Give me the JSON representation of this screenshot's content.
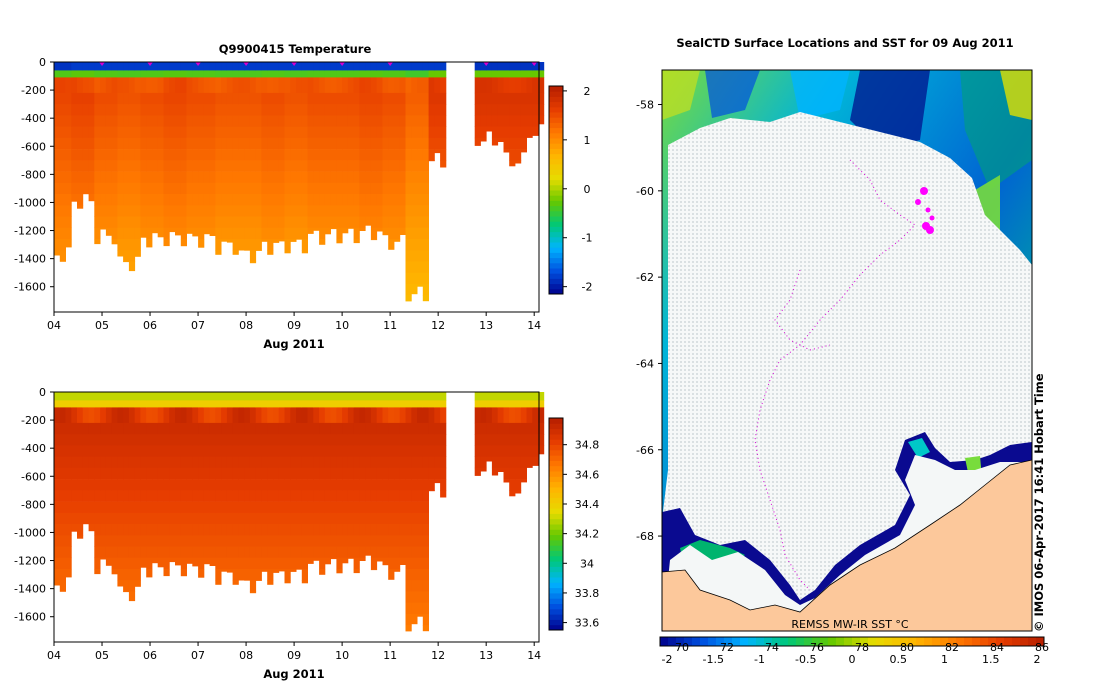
{
  "chart_data": [
    {
      "type": "heatmap",
      "title": "Q9900415  Temperature",
      "xlabel": "Aug 2011",
      "ylabel": "",
      "x_ticks": [
        "04",
        "05",
        "06",
        "07",
        "08",
        "09",
        "10",
        "11",
        "12",
        "13",
        "14"
      ],
      "xlim": [
        4,
        14.1
      ],
      "y_ticks": [
        0,
        -200,
        -400,
        -600,
        -800,
        -1000,
        -1200,
        -1400,
        -1600
      ],
      "ylim": [
        -1780,
        0
      ],
      "gaps": [
        [
          12.15,
          12.75
        ]
      ],
      "profile_markers": [
        5,
        6,
        7,
        8,
        9,
        10,
        11,
        13,
        14
      ],
      "colorbar": {
        "min": -2.15,
        "max": 2.1,
        "ticks": [
          "-2",
          "-1",
          "0",
          "1",
          "2"
        ],
        "tick_values": [
          -2,
          -1,
          0,
          1,
          2
        ]
      },
      "color_stops": [
        "#00008b",
        "#0050e0",
        "#00b4ff",
        "#00c878",
        "#64c800",
        "#e6dc00",
        "#ffb400",
        "#ff7800",
        "#e63c00",
        "#b41e00"
      ],
      "profiles": [
        {
          "t": 4.08,
          "maxdepth": 1370,
          "surface": -1.85,
          "deep": 1.55
        },
        {
          "t": 4.5,
          "maxdepth": 990,
          "surface": -1.8,
          "deep": 1.6
        },
        {
          "t": 5.0,
          "maxdepth": 1240,
          "surface": -1.8,
          "deep": 1.5
        },
        {
          "t": 5.5,
          "maxdepth": 1430,
          "surface": -1.8,
          "deep": 1.45
        },
        {
          "t": 6.0,
          "maxdepth": 1260,
          "surface": -1.8,
          "deep": 1.5
        },
        {
          "t": 6.5,
          "maxdepth": 1250,
          "surface": -1.8,
          "deep": 1.55
        },
        {
          "t": 7.0,
          "maxdepth": 1260,
          "surface": -1.8,
          "deep": 1.5
        },
        {
          "t": 7.5,
          "maxdepth": 1310,
          "surface": -1.8,
          "deep": 1.45
        },
        {
          "t": 8.0,
          "maxdepth": 1370,
          "surface": -1.8,
          "deep": 1.45
        },
        {
          "t": 8.5,
          "maxdepth": 1310,
          "surface": -1.8,
          "deep": 1.5
        },
        {
          "t": 9.0,
          "maxdepth": 1300,
          "surface": -1.8,
          "deep": 1.45
        },
        {
          "t": 9.5,
          "maxdepth": 1240,
          "surface": -1.8,
          "deep": 1.5
        },
        {
          "t": 10.0,
          "maxdepth": 1230,
          "surface": -1.8,
          "deep": 1.5
        },
        {
          "t": 10.5,
          "maxdepth": 1210,
          "surface": -1.8,
          "deep": 1.55
        },
        {
          "t": 11.0,
          "maxdepth": 1280,
          "surface": -1.8,
          "deep": 1.5
        },
        {
          "t": 11.5,
          "maxdepth": 1650,
          "surface": -1.8,
          "deep": 1.35
        },
        {
          "t": 12.0,
          "maxdepth": 700,
          "surface": -1.8,
          "deep": 1.7
        },
        {
          "t": 13.0,
          "maxdepth": 550,
          "surface": -1.85,
          "deep": 1.75
        },
        {
          "t": 13.5,
          "maxdepth": 700,
          "surface": -1.85,
          "deep": 1.75
        },
        {
          "t": 14.0,
          "maxdepth": 500,
          "surface": -1.85,
          "deep": 1.75
        }
      ]
    },
    {
      "type": "heatmap",
      "title": "",
      "xlabel": "Aug 2011",
      "ylabel": "",
      "x_ticks": [
        "04",
        "05",
        "06",
        "07",
        "08",
        "09",
        "10",
        "11",
        "12",
        "13",
        "14"
      ],
      "xlim": [
        4,
        14.1
      ],
      "y_ticks": [
        0,
        -200,
        -400,
        -600,
        -800,
        -1000,
        -1200,
        -1400,
        -1600
      ],
      "ylim": [
        -1780,
        0
      ],
      "gaps": [
        [
          12.15,
          12.75
        ]
      ],
      "colorbar": {
        "min": 33.55,
        "max": 34.98,
        "ticks": [
          "33.6",
          "33.8",
          "34",
          "34.2",
          "34.4",
          "34.6",
          "34.8"
        ],
        "tick_values": [
          33.6,
          33.8,
          34.0,
          34.2,
          34.4,
          34.6,
          34.8
        ]
      },
      "color_stops": [
        "#00008b",
        "#0050e0",
        "#00b4ff",
        "#00c878",
        "#64c800",
        "#e6dc00",
        "#ffb400",
        "#ff7800",
        "#e63c00",
        "#b41e00"
      ],
      "profiles": [
        {
          "t": 4.08,
          "maxdepth": 1370,
          "surface": 34.3,
          "deep": 34.9
        },
        {
          "t": 4.5,
          "maxdepth": 990,
          "surface": 34.3,
          "deep": 34.9
        },
        {
          "t": 5.0,
          "maxdepth": 1240,
          "surface": 34.3,
          "deep": 34.9
        },
        {
          "t": 5.5,
          "maxdepth": 1430,
          "surface": 34.3,
          "deep": 34.9
        },
        {
          "t": 6.0,
          "maxdepth": 1260,
          "surface": 34.3,
          "deep": 34.9
        },
        {
          "t": 6.5,
          "maxdepth": 1250,
          "surface": 34.3,
          "deep": 34.9
        },
        {
          "t": 7.0,
          "maxdepth": 1260,
          "surface": 34.3,
          "deep": 34.9
        },
        {
          "t": 7.5,
          "maxdepth": 1310,
          "surface": 34.3,
          "deep": 34.9
        },
        {
          "t": 8.0,
          "maxdepth": 1370,
          "surface": 34.3,
          "deep": 34.9
        },
        {
          "t": 8.5,
          "maxdepth": 1310,
          "surface": 34.3,
          "deep": 34.9
        },
        {
          "t": 9.0,
          "maxdepth": 1300,
          "surface": 34.3,
          "deep": 34.9
        },
        {
          "t": 9.5,
          "maxdepth": 1240,
          "surface": 34.3,
          "deep": 34.9
        },
        {
          "t": 10.0,
          "maxdepth": 1230,
          "surface": 34.3,
          "deep": 34.9
        },
        {
          "t": 10.5,
          "maxdepth": 1210,
          "surface": 34.3,
          "deep": 34.9
        },
        {
          "t": 11.0,
          "maxdepth": 1280,
          "surface": 34.3,
          "deep": 34.9
        },
        {
          "t": 11.5,
          "maxdepth": 1650,
          "surface": 34.3,
          "deep": 34.9
        },
        {
          "t": 12.0,
          "maxdepth": 700,
          "surface": 34.3,
          "deep": 34.9
        },
        {
          "t": 13.0,
          "maxdepth": 550,
          "surface": 34.3,
          "deep": 34.9
        },
        {
          "t": 13.5,
          "maxdepth": 700,
          "surface": 34.3,
          "deep": 34.9
        },
        {
          "t": 14.0,
          "maxdepth": 500,
          "surface": 34.3,
          "deep": 34.9
        }
      ]
    },
    {
      "type": "heatmap",
      "subtype": "map",
      "title": "SealCTD Surface Locations and SST for 09 Aug 2011",
      "y_ticks": [
        -58,
        -60,
        -62,
        -64,
        -66,
        -68
      ],
      "ylim": [
        -70.2,
        -57.2
      ],
      "colorbar": {
        "label": "REMSS MW-IR SST °C",
        "min": -2,
        "max": 2,
        "ticks": [
          "-2",
          "-1.5",
          "-1",
          "-0.5",
          "0",
          "0.5",
          "1",
          "1.5",
          "2"
        ],
        "tick_values": [
          -2,
          -1.5,
          -1,
          -0.5,
          0,
          0.5,
          1,
          1.5,
          2
        ],
        "secondary_ticks": [
          "70",
          "72",
          "74",
          "76",
          "78",
          "80",
          "82",
          "84",
          "86"
        ]
      },
      "color_stops": [
        "#00008b",
        "#0050e0",
        "#00b4ff",
        "#00c878",
        "#64c800",
        "#e6dc00",
        "#ffb400",
        "#ff7800",
        "#e63c00",
        "#b41e00"
      ],
      "land_color": "#fcc89b",
      "ice_color": "#f4f7f7",
      "annotation": "©  IMOS 06-Apr-2017 16:41 Hobart Time"
    }
  ]
}
